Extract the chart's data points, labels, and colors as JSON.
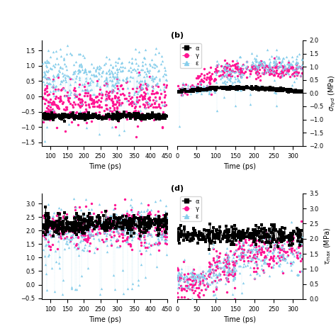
{
  "panels": {
    "a": {
      "xlabel": "Time (ps)",
      "ylabel": "",
      "xlim": [
        75,
        450
      ],
      "xticks": [
        100,
        150,
        200,
        250,
        300,
        350,
        400,
        450
      ],
      "label": ""
    },
    "b": {
      "xlabel": "Time (ps)",
      "ylabel": "σ_hyd (MPa)",
      "xlim": [
        0,
        325
      ],
      "xticks": [
        0,
        50,
        100,
        150,
        200,
        250,
        300
      ],
      "ylim": [
        -2.0,
        2.0
      ],
      "yticks": [
        -2.0,
        -1.5,
        -1.0,
        -0.5,
        0.0,
        0.5,
        1.0,
        1.5,
        2.0
      ],
      "label": "(b)"
    },
    "c": {
      "xlabel": "Time (ps)",
      "ylabel": "",
      "xlim": [
        75,
        450
      ],
      "xticks": [
        100,
        150,
        200,
        250,
        300,
        350,
        400,
        450
      ],
      "label": ""
    },
    "d": {
      "xlabel": "Time (ps)",
      "ylabel": "τ_max (MPa)",
      "xlim": [
        0,
        325
      ],
      "xticks": [
        0,
        50,
        100,
        150,
        200,
        250,
        300
      ],
      "ylim": [
        0.0,
        3.5
      ],
      "yticks": [
        0.0,
        0.5,
        1.0,
        1.5,
        2.0,
        2.5,
        3.0,
        3.5
      ],
      "label": "(d)"
    }
  },
  "colors": {
    "alpha": "#000000",
    "gamma": "#FF1493",
    "epsilon": "#87CEEB"
  },
  "legend_labels": {
    "alpha": "α",
    "gamma": "γ",
    "epsilon": "ε"
  },
  "figsize": [
    4.74,
    4.74
  ],
  "dpi": 100
}
